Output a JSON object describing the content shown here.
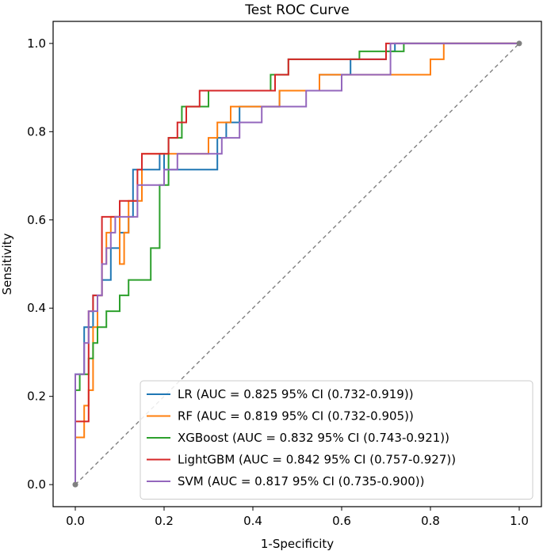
{
  "chart_data": {
    "type": "line",
    "title": "Test ROC Curve",
    "xlabel": "1-Specificity",
    "ylabel": "Sensitivity",
    "xlim": [
      -0.05,
      1.05
    ],
    "ylim": [
      -0.05,
      1.05
    ],
    "xticks": [
      0.0,
      0.2,
      0.4,
      0.6,
      0.8,
      1.0
    ],
    "yticks": [
      0.0,
      0.2,
      0.4,
      0.6,
      0.8,
      1.0
    ],
    "xtick_labels": [
      "0.0",
      "0.2",
      "0.4",
      "0.6",
      "0.8",
      "1.0"
    ],
    "ytick_labels": [
      "0.0",
      "0.2",
      "0.4",
      "0.6",
      "0.8",
      "1.0"
    ],
    "grid": false,
    "legend_position": "lower-right",
    "diagonal": {
      "x": [
        0,
        1
      ],
      "y": [
        0,
        1
      ],
      "style": "dashed",
      "color": "#808080"
    },
    "series": [
      {
        "name": "LR (AUC = 0.825 95% CI (0.732-0.919))",
        "color": "#1f77b4",
        "x": [
          0,
          0,
          0.02,
          0.02,
          0.04,
          0.04,
          0.06,
          0.06,
          0.08,
          0.08,
          0.1,
          0.1,
          0.12,
          0.12,
          0.13,
          0.13,
          0.19,
          0.19,
          0.2,
          0.2,
          0.32,
          0.32,
          0.34,
          0.34,
          0.37,
          0.37,
          0.46,
          0.46,
          0.55,
          0.55,
          0.62,
          0.62,
          0.7,
          0.7,
          0.72,
          0.72,
          1.0
        ],
        "y": [
          0,
          0.25,
          0.25,
          0.357,
          0.357,
          0.429,
          0.429,
          0.464,
          0.464,
          0.536,
          0.536,
          0.571,
          0.571,
          0.607,
          0.607,
          0.714,
          0.714,
          0.75,
          0.75,
          0.714,
          0.714,
          0.786,
          0.786,
          0.821,
          0.821,
          0.857,
          0.857,
          0.893,
          0.893,
          0.929,
          0.929,
          0.964,
          0.964,
          0.982,
          0.982,
          1.0,
          1.0
        ]
      },
      {
        "name": "RF (AUC = 0.819 95% CI (0.732-0.905))",
        "color": "#ff7f0e",
        "x": [
          0,
          0,
          0.02,
          0.02,
          0.03,
          0.03,
          0.04,
          0.04,
          0.05,
          0.05,
          0.06,
          0.06,
          0.07,
          0.07,
          0.08,
          0.08,
          0.1,
          0.1,
          0.11,
          0.11,
          0.12,
          0.12,
          0.15,
          0.15,
          0.19,
          0.19,
          0.3,
          0.3,
          0.32,
          0.32,
          0.35,
          0.35,
          0.37,
          0.37,
          0.46,
          0.46,
          0.55,
          0.55,
          0.8,
          0.8,
          0.83,
          0.83,
          1.0
        ],
        "y": [
          0,
          0.107,
          0.107,
          0.179,
          0.179,
          0.214,
          0.214,
          0.357,
          0.357,
          0.429,
          0.429,
          0.5,
          0.5,
          0.571,
          0.571,
          0.607,
          0.607,
          0.5,
          0.5,
          0.571,
          0.571,
          0.643,
          0.643,
          0.75,
          0.75,
          0.75,
          0.75,
          0.786,
          0.786,
          0.821,
          0.821,
          0.857,
          0.857,
          0.857,
          0.857,
          0.893,
          0.893,
          0.929,
          0.929,
          0.964,
          0.964,
          1.0,
          1.0
        ]
      },
      {
        "name": "XGBoost (AUC = 0.832 95% CI (0.743-0.921))",
        "color": "#2ca02c",
        "x": [
          0,
          0,
          0.01,
          0.01,
          0.03,
          0.03,
          0.04,
          0.04,
          0.05,
          0.05,
          0.07,
          0.07,
          0.1,
          0.1,
          0.12,
          0.12,
          0.17,
          0.17,
          0.19,
          0.19,
          0.21,
          0.21,
          0.24,
          0.24,
          0.28,
          0.28,
          0.3,
          0.3,
          0.35,
          0.35,
          0.44,
          0.44,
          0.46,
          0.46,
          0.48,
          0.48,
          0.54,
          0.54,
          0.64,
          0.64,
          0.74,
          0.74,
          1.0
        ],
        "y": [
          0,
          0.214,
          0.214,
          0.25,
          0.25,
          0.286,
          0.286,
          0.321,
          0.321,
          0.357,
          0.357,
          0.393,
          0.393,
          0.429,
          0.429,
          0.464,
          0.464,
          0.536,
          0.536,
          0.679,
          0.679,
          0.786,
          0.786,
          0.857,
          0.857,
          0.857,
          0.857,
          0.893,
          0.893,
          0.893,
          0.893,
          0.929,
          0.929,
          0.929,
          0.929,
          0.964,
          0.964,
          0.964,
          0.964,
          0.982,
          0.982,
          1.0,
          1.0
        ]
      },
      {
        "name": "LightGBM (AUC = 0.842 95% CI (0.757-0.927))",
        "color": "#d62728",
        "x": [
          0,
          0,
          0.03,
          0.03,
          0.04,
          0.04,
          0.06,
          0.06,
          0.1,
          0.1,
          0.14,
          0.14,
          0.15,
          0.15,
          0.21,
          0.21,
          0.23,
          0.23,
          0.25,
          0.25,
          0.28,
          0.28,
          0.29,
          0.29,
          0.45,
          0.45,
          0.48,
          0.48,
          0.55,
          0.55,
          0.7,
          0.7,
          0.88,
          0.88,
          1.0
        ],
        "y": [
          0,
          0.143,
          0.143,
          0.393,
          0.393,
          0.429,
          0.429,
          0.607,
          0.607,
          0.643,
          0.643,
          0.714,
          0.714,
          0.75,
          0.75,
          0.786,
          0.786,
          0.821,
          0.821,
          0.857,
          0.857,
          0.893,
          0.893,
          0.893,
          0.893,
          0.929,
          0.929,
          0.964,
          0.964,
          0.964,
          0.964,
          1.0,
          1.0,
          1.0,
          1.0
        ]
      },
      {
        "name": "SVM (AUC = 0.817 95% CI (0.735-0.900))",
        "color": "#9467bd",
        "x": [
          0,
          0,
          0.02,
          0.02,
          0.03,
          0.03,
          0.05,
          0.05,
          0.06,
          0.06,
          0.07,
          0.07,
          0.08,
          0.08,
          0.09,
          0.09,
          0.1,
          0.1,
          0.14,
          0.14,
          0.16,
          0.16,
          0.2,
          0.2,
          0.23,
          0.23,
          0.33,
          0.33,
          0.37,
          0.37,
          0.42,
          0.42,
          0.52,
          0.52,
          0.6,
          0.6,
          0.71,
          0.71,
          1.0
        ],
        "y": [
          0,
          0.25,
          0.25,
          0.321,
          0.321,
          0.393,
          0.393,
          0.429,
          0.429,
          0.5,
          0.5,
          0.536,
          0.536,
          0.571,
          0.571,
          0.607,
          0.607,
          0.607,
          0.607,
          0.679,
          0.679,
          0.679,
          0.679,
          0.714,
          0.714,
          0.75,
          0.75,
          0.786,
          0.786,
          0.821,
          0.821,
          0.857,
          0.857,
          0.893,
          0.893,
          0.929,
          0.929,
          1.0,
          1.0
        ]
      }
    ]
  }
}
